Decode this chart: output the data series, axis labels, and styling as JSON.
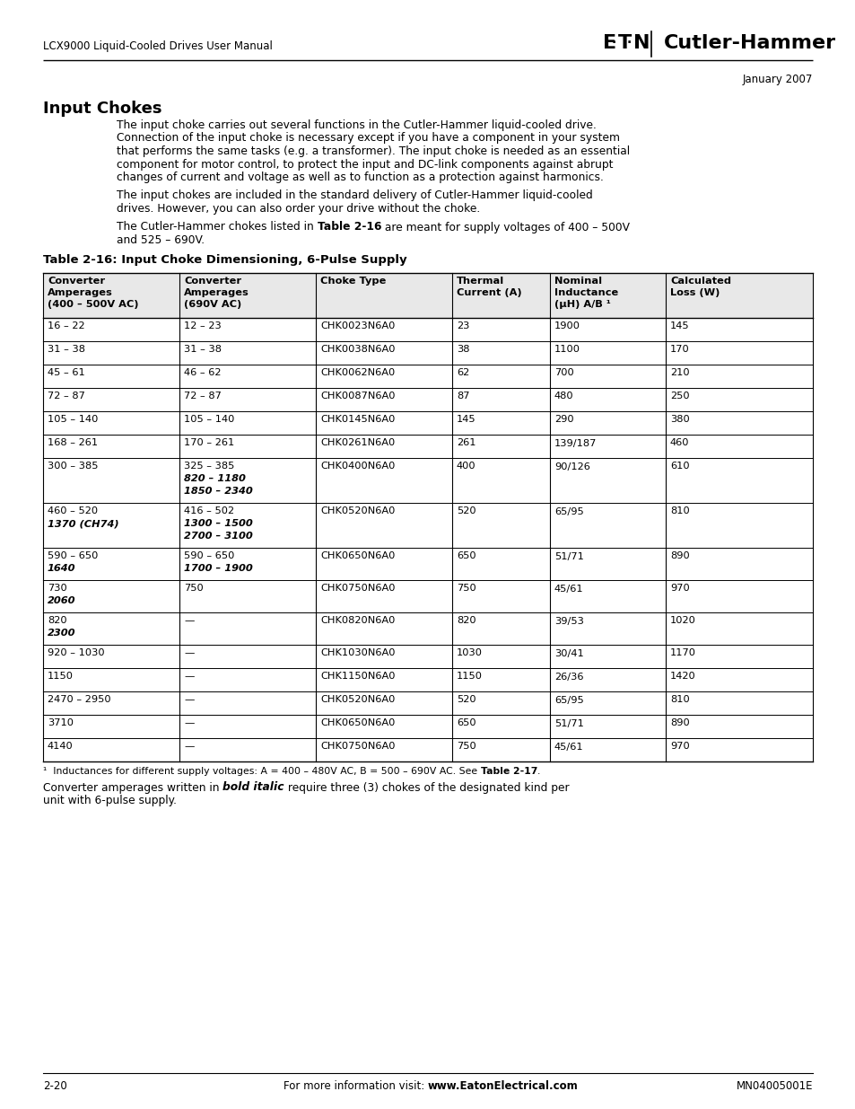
{
  "page_title": "LCX9000 Liquid-Cooled Drives User Manual",
  "date": "January 2007",
  "section_title": "Input Chokes",
  "para1_lines": [
    "The input choke carries out several functions in the Cutler-Hammer liquid-cooled drive.",
    "Connection of the input choke is necessary except if you have a component in your system",
    "that performs the same tasks (e.g. a transformer). The input choke is needed as an essential",
    "component for motor control, to protect the input and DC-link components against abrupt",
    "changes of current and voltage as well as to function as a protection against harmonics."
  ],
  "para2_lines": [
    "The input chokes are included in the standard delivery of Cutler-Hammer liquid-cooled",
    "drives. However, you can also order your drive without the choke."
  ],
  "table_title": "Table 2-16: Input Choke Dimensioning, 6-Pulse Supply",
  "rows": [
    {
      "col1": "16 – 22",
      "col1_bold_italic": false,
      "col2": "12 – 23",
      "col2_lines_italic": [],
      "col3": "CHK0023N6A0",
      "col4": "23",
      "col5": "1900",
      "col6": "145"
    },
    {
      "col1": "31 – 38",
      "col1_bold_italic": false,
      "col2": "31 – 38",
      "col2_lines_italic": [],
      "col3": "CHK0038N6A0",
      "col4": "38",
      "col5": "1100",
      "col6": "170"
    },
    {
      "col1": "45 – 61",
      "col1_bold_italic": false,
      "col2": "46 – 62",
      "col2_lines_italic": [],
      "col3": "CHK0062N6A0",
      "col4": "62",
      "col5": "700",
      "col6": "210"
    },
    {
      "col1": "72 – 87",
      "col1_bold_italic": false,
      "col2": "72 – 87",
      "col2_lines_italic": [],
      "col3": "CHK0087N6A0",
      "col4": "87",
      "col5": "480",
      "col6": "250"
    },
    {
      "col1": "105 – 140",
      "col1_bold_italic": false,
      "col2": "105 – 140",
      "col2_lines_italic": [],
      "col3": "CHK0145N6A0",
      "col4": "145",
      "col5": "290",
      "col6": "380"
    },
    {
      "col1": "168 – 261",
      "col1_bold_italic": false,
      "col2": "170 – 261",
      "col2_lines_italic": [],
      "col3": "CHK0261N6A0",
      "col4": "261",
      "col5": "139/187",
      "col6": "460"
    },
    {
      "col1": "300 – 385",
      "col1_bold_italic": false,
      "col2": "325 – 385\n820 – 1180\n1850 – 2340",
      "col2_lines_italic": [
        false,
        true,
        true
      ],
      "col3": "CHK0400N6A0",
      "col4": "400",
      "col5": "90/126",
      "col6": "610"
    },
    {
      "col1": "460 – 520\n1370 (CH74)",
      "col1_bold_italic": true,
      "col2": "416 – 502\n1300 – 1500\n2700 – 3100",
      "col2_lines_italic": [
        false,
        true,
        true
      ],
      "col3": "CHK0520N6A0",
      "col4": "520",
      "col5": "65/95",
      "col6": "810"
    },
    {
      "col1": "590 – 650\n1640",
      "col1_bold_italic": true,
      "col2": "590 – 650\n1700 – 1900",
      "col2_lines_italic": [
        false,
        true
      ],
      "col3": "CHK0650N6A0",
      "col4": "650",
      "col5": "51/71",
      "col6": "890"
    },
    {
      "col1": "730\n2060",
      "col1_bold_italic": true,
      "col2": "750",
      "col2_lines_italic": [],
      "col3": "CHK0750N6A0",
      "col4": "750",
      "col5": "45/61",
      "col6": "970"
    },
    {
      "col1": "820\n2300",
      "col1_bold_italic": true,
      "col2": "—",
      "col2_lines_italic": [],
      "col3": "CHK0820N6A0",
      "col4": "820",
      "col5": "39/53",
      "col6": "1020"
    },
    {
      "col1": "920 – 1030",
      "col1_bold_italic": false,
      "col2": "—",
      "col2_lines_italic": [],
      "col3": "CHK1030N6A0",
      "col4": "1030",
      "col5": "30/41",
      "col6": "1170"
    },
    {
      "col1": "1150",
      "col1_bold_italic": false,
      "col2": "—",
      "col2_lines_italic": [],
      "col3": "CHK1150N6A0",
      "col4": "1150",
      "col5": "26/36",
      "col6": "1420"
    },
    {
      "col1": "2470 – 2950",
      "col1_bold_italic": true,
      "col2": "—",
      "col2_lines_italic": [],
      "col3": "CHK0520N6A0",
      "col4": "520",
      "col5": "65/95",
      "col6": "810"
    },
    {
      "col1": "3710",
      "col1_bold_italic": true,
      "col2": "—",
      "col2_lines_italic": [],
      "col3": "CHK0650N6A0",
      "col4": "650",
      "col5": "51/71",
      "col6": "890"
    },
    {
      "col1": "4140",
      "col1_bold_italic": true,
      "col2": "—",
      "col2_lines_italic": [],
      "col3": "CHK0750N6A0",
      "col4": "750",
      "col5": "45/61",
      "col6": "970"
    }
  ],
  "page_num": "2-20",
  "footer_right": "MN04005001E",
  "bg_color": "#ffffff",
  "header_bg": "#ffffff",
  "table_header_bg": "#e8e8e8",
  "border_color": "#000000"
}
